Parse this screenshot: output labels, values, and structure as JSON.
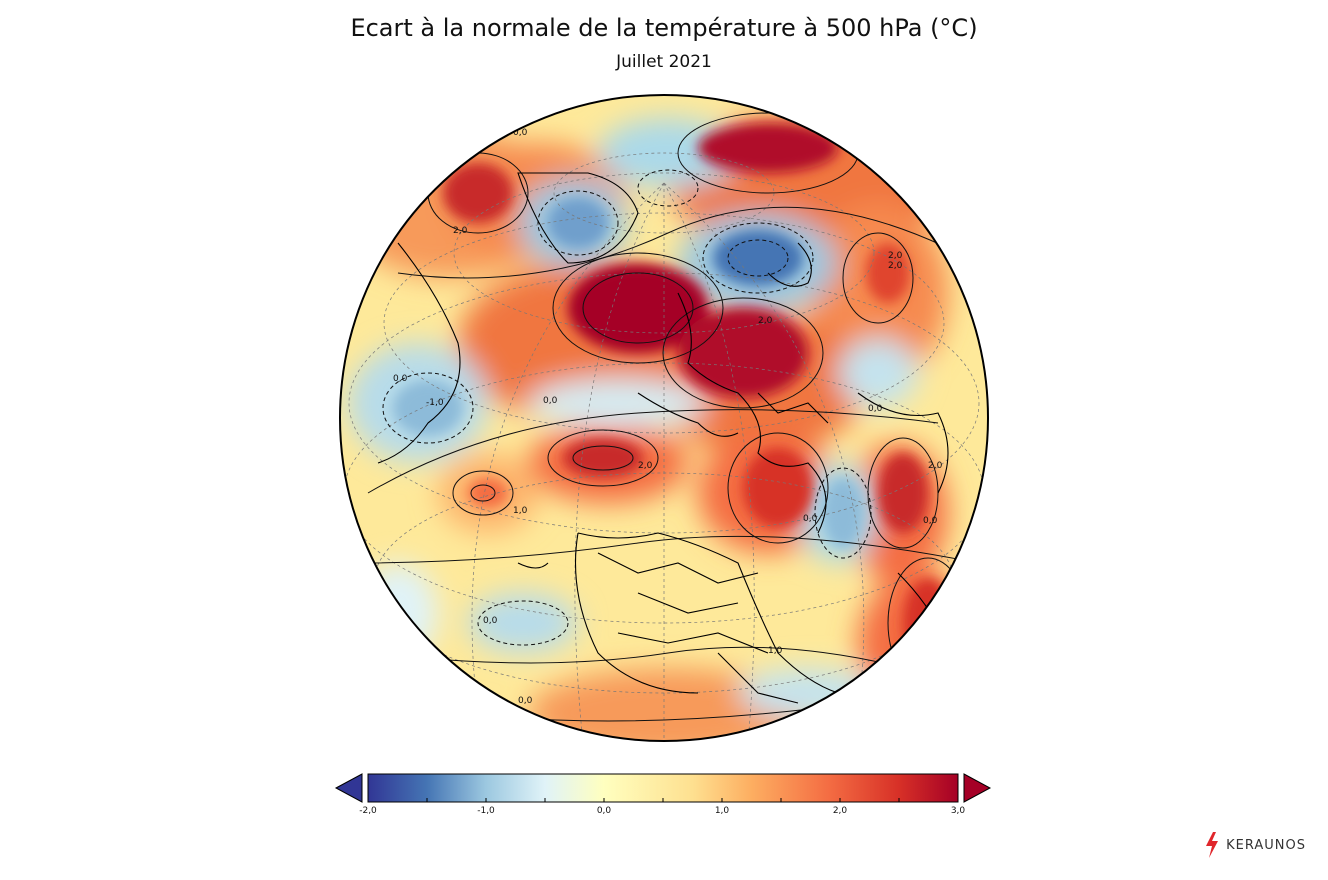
{
  "header": {
    "title": "Ecart à la normale de la température à 500 hPa (°C)",
    "subtitle": "Juillet 2021"
  },
  "map": {
    "projection": "orthographic",
    "variable": "temperature anomaly 500 hPa",
    "contour_labels": [
      "0,0",
      "2,0",
      "2,0",
      "2,0",
      "-1,0",
      "0,0",
      "0,0",
      "2,0",
      "0,0",
      "0,0",
      "1,0",
      "0,0",
      "2,0",
      "0,0",
      "0,0",
      "1,0",
      "2,0"
    ]
  },
  "colorbar": {
    "min": -2.0,
    "max": 3.0,
    "tick_labels": [
      "-2,0",
      "-1,0",
      "0,0",
      "1,0",
      "2,0",
      "3,0"
    ],
    "colors": [
      "#313695",
      "#4575b4",
      "#74add1",
      "#abd9e9",
      "#e0f3f8",
      "#ffffbf",
      "#fee090",
      "#fdae61",
      "#f46d43",
      "#d73027",
      "#a50026"
    ]
  },
  "brand": {
    "name": "KERAUNOS",
    "icon": "lightning-bolt-icon",
    "accent": "#e0262b"
  }
}
